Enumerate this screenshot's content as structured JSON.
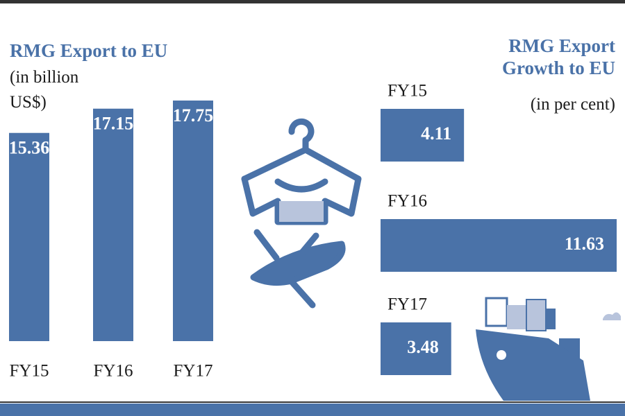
{
  "chart_data": [
    {
      "type": "bar",
      "title": "RMG Export to EU",
      "subtitle": "(in billion US$)",
      "categories": [
        "FY15",
        "FY16",
        "FY17"
      ],
      "values": [
        15.36,
        17.15,
        17.75
      ],
      "color": "#4a72a8"
    },
    {
      "type": "hbar",
      "title": "RMG Export Growth to EU",
      "subtitle": "(in per cent)",
      "categories": [
        "FY15",
        "FY16",
        "FY17"
      ],
      "values": [
        4.11,
        11.63,
        3.48
      ],
      "color": "#4a72a8"
    }
  ]
}
